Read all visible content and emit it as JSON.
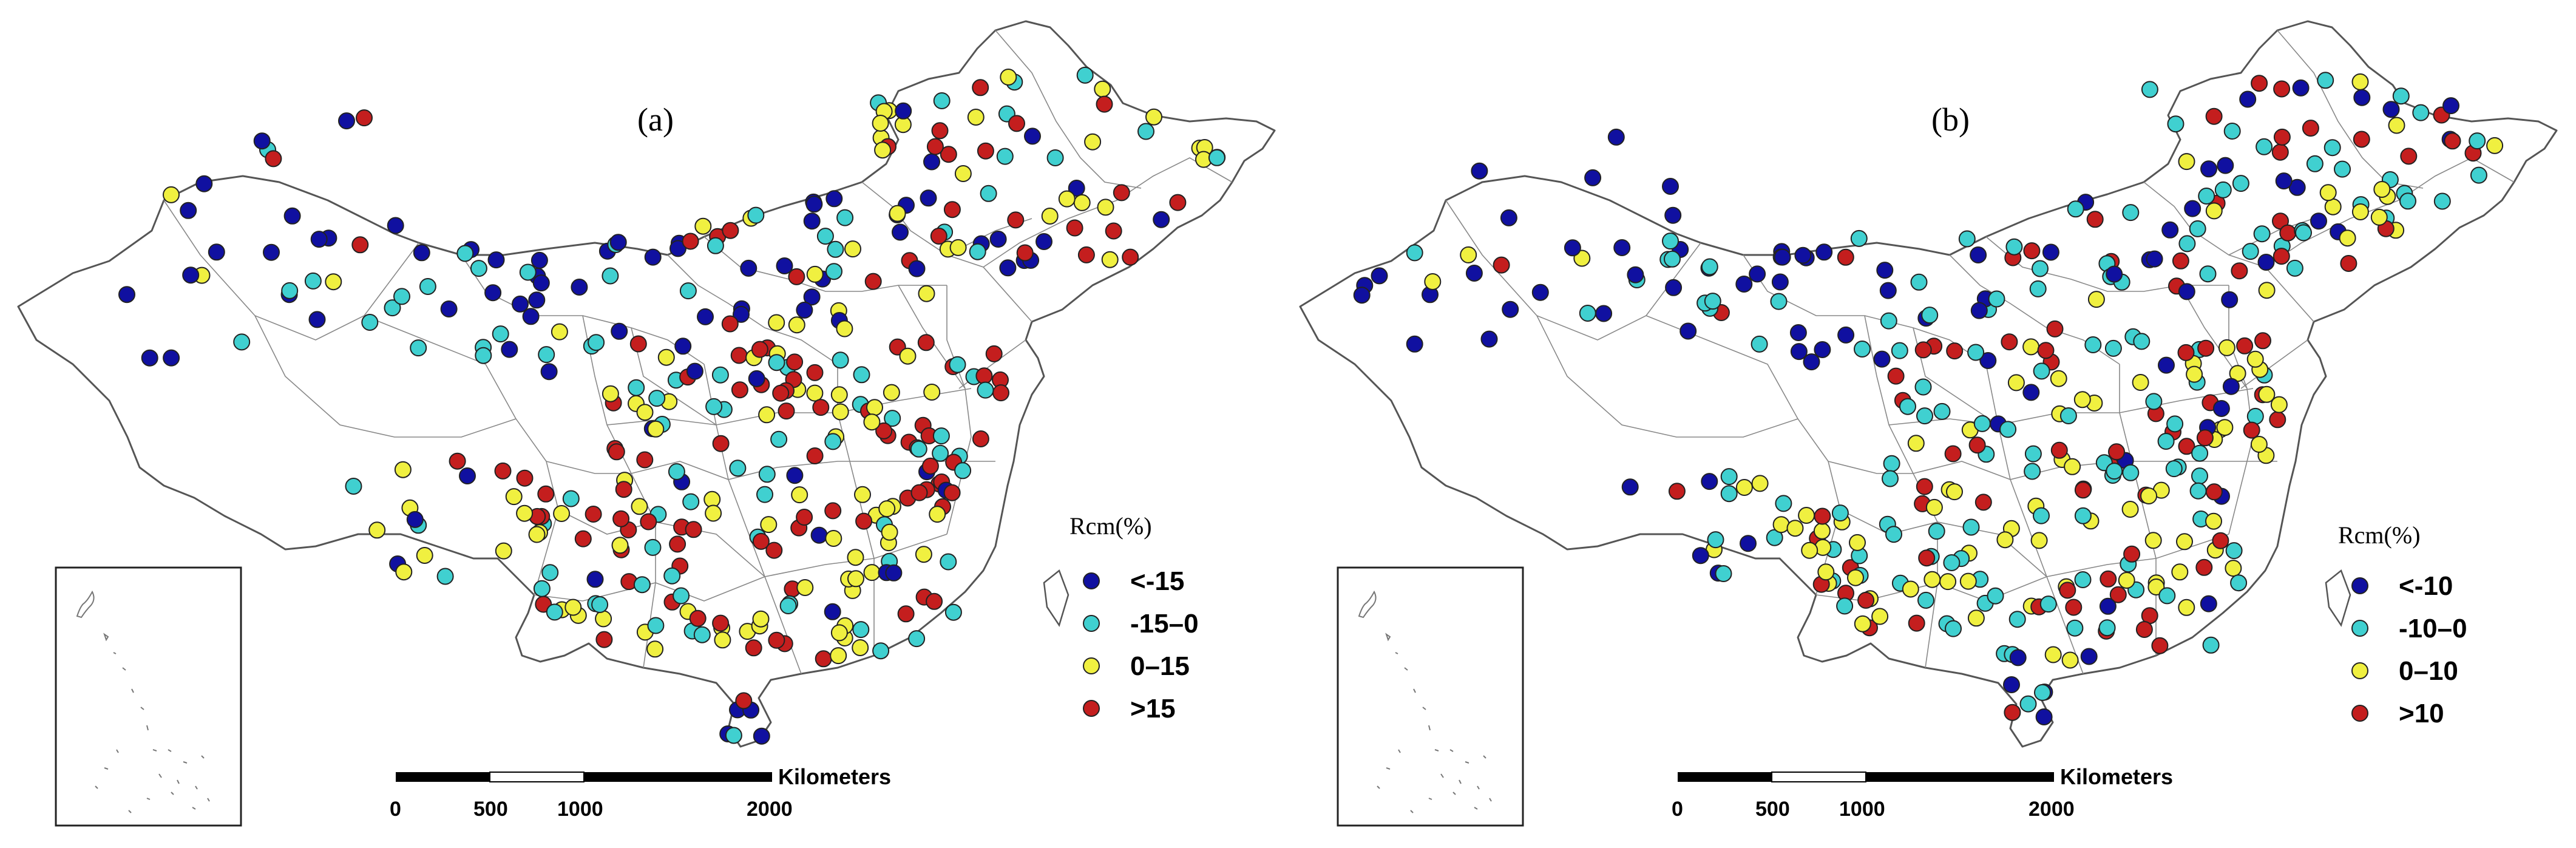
{
  "panels": [
    {
      "id": "a",
      "label": "(a)",
      "legend": {
        "title": "Rcm(%)",
        "items": [
          {
            "label": "<-15",
            "color": "#1010a0"
          },
          {
            "label": "-15–0",
            "color": "#40d0d0"
          },
          {
            "label": "0–15",
            "color": "#f0f040"
          },
          {
            "label": ">15",
            "color": "#c41e1e"
          }
        ]
      },
      "scale_bar": {
        "unit": "Kilometers",
        "ticks": [
          "0",
          "500",
          "1000",
          "2000"
        ]
      }
    },
    {
      "id": "b",
      "label": "(b)",
      "legend": {
        "title": "Rcm(%)",
        "items": [
          {
            "label": "<-10",
            "color": "#1010a0"
          },
          {
            "label": "-10–0",
            "color": "#40d0d0"
          },
          {
            "label": "0–10",
            "color": "#f0f040"
          },
          {
            "label": ">10",
            "color": "#c41e1e"
          }
        ]
      },
      "scale_bar": {
        "unit": "Kilometers",
        "ticks": [
          "0",
          "500",
          "1000",
          "2000"
        ]
      }
    }
  ]
}
